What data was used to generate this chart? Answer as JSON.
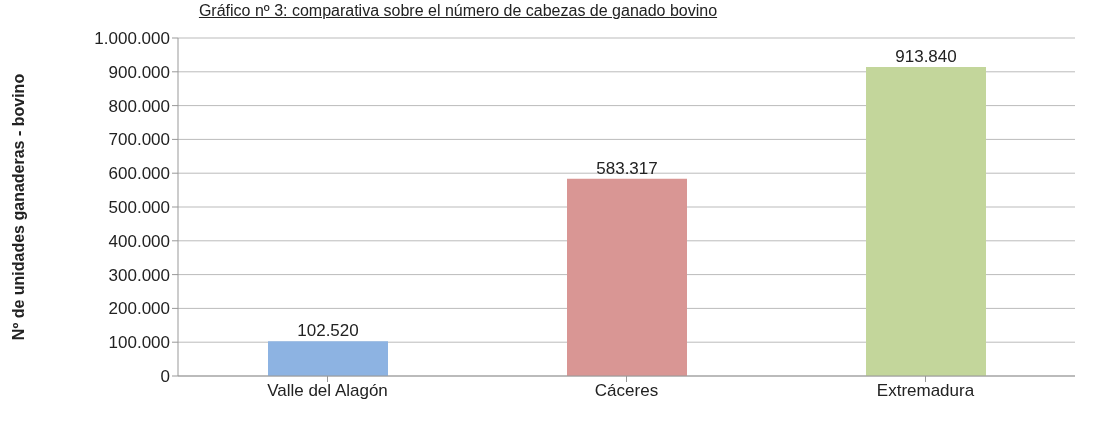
{
  "chart_data": {
    "type": "bar",
    "title": "Gráfico nº 3: comparativa sobre el número de cabezas de ganado bovino",
    "ylabel": "Nº de unidades ganaderas - bovino",
    "categories": [
      "Valle del Alagón",
      "Cáceres",
      "Extremadura"
    ],
    "values": [
      102520,
      583317,
      913840
    ],
    "colors": [
      "#8db3e2",
      "#d99694",
      "#c3d69b"
    ],
    "value_labels": [
      "102.520",
      "583.317",
      "913.840"
    ],
    "ylim": [
      0,
      1000000
    ],
    "yticks": [
      {
        "value": 0,
        "label": "0"
      },
      {
        "value": 100000,
        "label": "100.000"
      },
      {
        "value": 200000,
        "label": "200.000"
      },
      {
        "value": 300000,
        "label": "300.000"
      },
      {
        "value": 400000,
        "label": "400.000"
      },
      {
        "value": 500000,
        "label": "500.000"
      },
      {
        "value": 600000,
        "label": "600.000"
      },
      {
        "value": 700000,
        "label": "700.000"
      },
      {
        "value": 800000,
        "label": "800.000"
      },
      {
        "value": 900000,
        "label": "900.000"
      },
      {
        "value": 1000000,
        "label": "1.000.000"
      }
    ],
    "grid": "y"
  }
}
